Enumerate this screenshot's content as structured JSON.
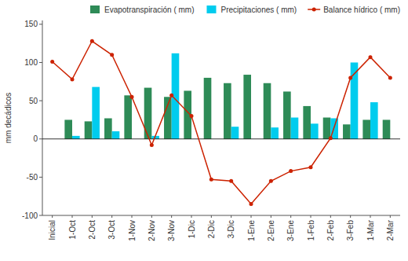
{
  "chart_data": {
    "type": "bar",
    "categories": [
      "Inicial",
      "1-Oct",
      "2-Oct",
      "3-Oct",
      "1-Nov",
      "2-Nov",
      "3-Nov",
      "1-Dic",
      "2-Dic",
      "3-Dic",
      "1-Ene",
      "2-Ene",
      "3-Ene",
      "1-Feb",
      "2-Feb",
      "3-Feb",
      "1-Mar",
      "2-Mar"
    ],
    "series": [
      {
        "name": "Evapotranspiración ( mm)",
        "color": "#2e8b57",
        "type": "bar",
        "values": [
          0,
          25,
          23,
          27,
          57,
          67,
          55,
          63,
          80,
          73,
          84,
          73,
          62,
          43,
          28,
          19,
          25,
          25
        ]
      },
      {
        "name": "Precipitaciones ( mm)",
        "color": "#00ccee",
        "type": "bar",
        "values": [
          0,
          4,
          68,
          10,
          0,
          4,
          112,
          0,
          0,
          16,
          0,
          15,
          28,
          20,
          27,
          100,
          48,
          0
        ]
      },
      {
        "name": "Balance hídrico ( mm)",
        "color": "#cc2200",
        "type": "line",
        "marker": "circle",
        "values": [
          101,
          78,
          128,
          110,
          55,
          -8,
          57,
          30,
          -53,
          -55,
          -85,
          -55,
          -42,
          -37,
          1,
          80,
          107,
          80
        ]
      }
    ],
    "ylabel": "mm decádicos",
    "ylim": [
      -100,
      155
    ],
    "yticks": [
      -100,
      -50,
      0,
      50,
      100,
      150
    ],
    "grid": false,
    "legend": "upper right"
  }
}
